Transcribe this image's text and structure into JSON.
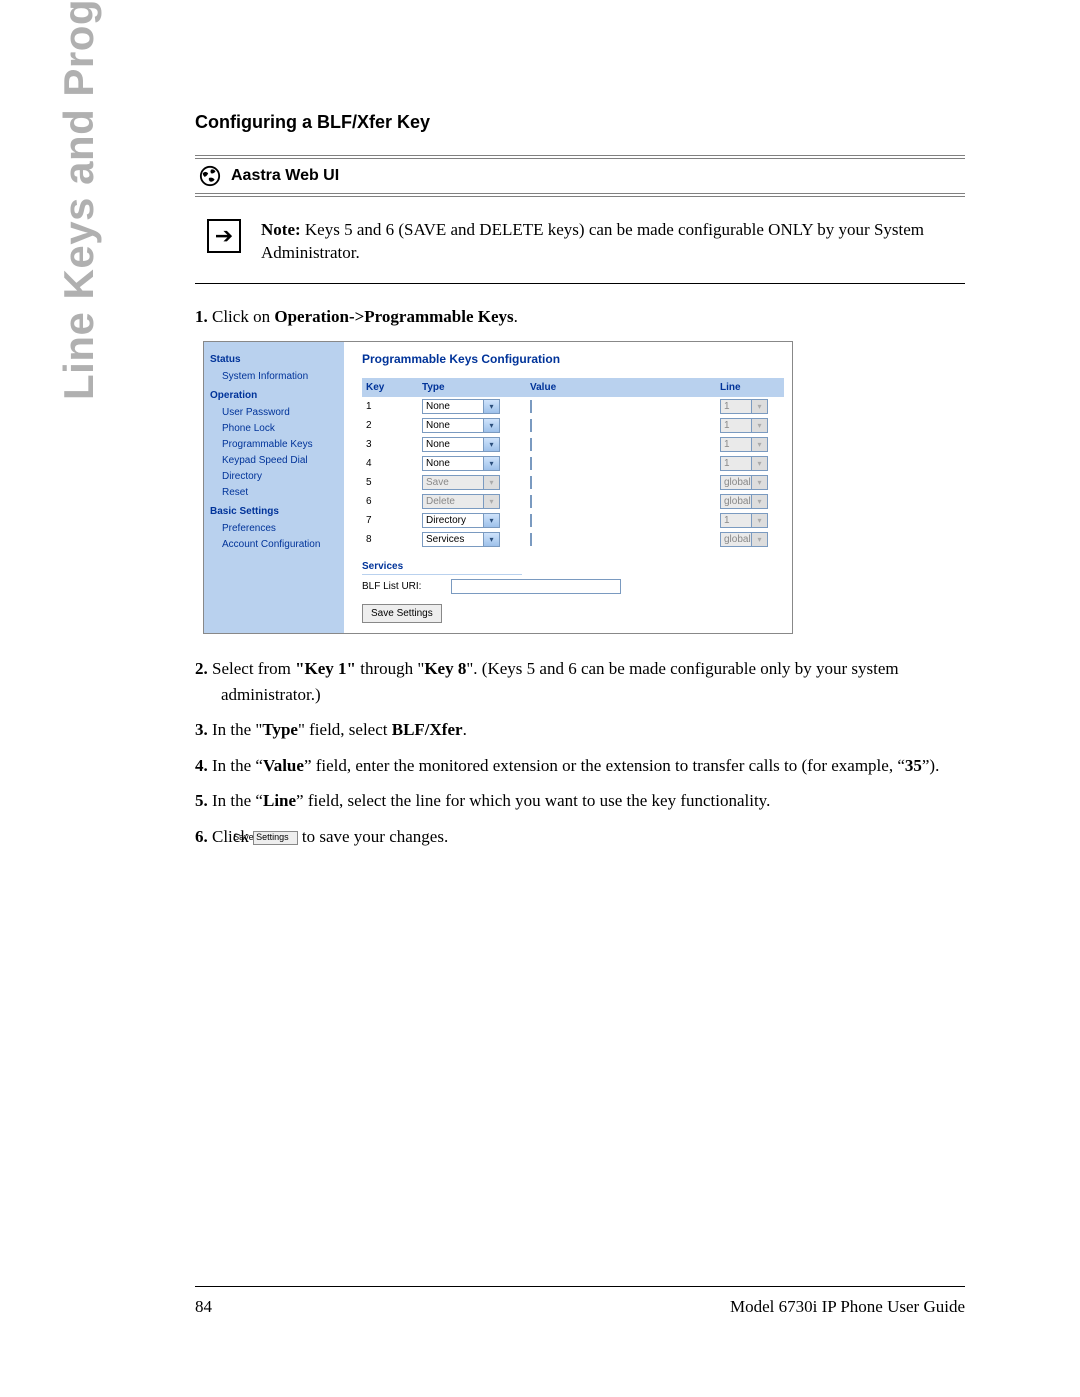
{
  "side_title": "Line Keys and Programmable Keys",
  "section_title": "Configuring a BLF/Xfer Key",
  "sub_header": "Aastra Web UI",
  "note": {
    "label": "Note:",
    "text": " Keys 5 and 6 (SAVE and DELETE keys) can be made configurable ONLY by your System Administrator."
  },
  "step1": {
    "num": "1.",
    "pre": "Click on ",
    "bold": "Operation->Programmable Keys",
    "post": "."
  },
  "screenshot": {
    "title": "Programmable Keys Configuration",
    "sidebar": {
      "h_status": "Status",
      "i_sysinfo": "System Information",
      "h_operation": "Operation",
      "i_userpw": "User Password",
      "i_phonelock": "Phone Lock",
      "i_progkeys": "Programmable Keys",
      "i_keypad": "Keypad Speed Dial",
      "i_directory": "Directory",
      "i_reset": "Reset",
      "h_basic": "Basic Settings",
      "i_pref": "Preferences",
      "i_acct": "Account Configuration"
    },
    "columns": {
      "key": "Key",
      "type": "Type",
      "value": "Value",
      "line": "Line"
    },
    "rows": [
      {
        "key": "1",
        "type": "None",
        "type_disabled": false,
        "line": "1",
        "line_disabled": true
      },
      {
        "key": "2",
        "type": "None",
        "type_disabled": false,
        "line": "1",
        "line_disabled": true
      },
      {
        "key": "3",
        "type": "None",
        "type_disabled": false,
        "line": "1",
        "line_disabled": true
      },
      {
        "key": "4",
        "type": "None",
        "type_disabled": false,
        "line": "1",
        "line_disabled": true
      },
      {
        "key": "5",
        "type": "Save",
        "type_disabled": true,
        "line": "global",
        "line_disabled": true
      },
      {
        "key": "6",
        "type": "Delete",
        "type_disabled": true,
        "line": "global",
        "line_disabled": true
      },
      {
        "key": "7",
        "type": "Directory",
        "type_disabled": false,
        "line": "1",
        "line_disabled": true
      },
      {
        "key": "8",
        "type": "Services",
        "type_disabled": false,
        "line": "global",
        "line_disabled": true
      }
    ],
    "services_header": "Services",
    "blf_label": "BLF List URI:",
    "save_settings": "Save Settings"
  },
  "step2": {
    "num": "2.",
    "t1": "Select from ",
    "b1": "\"Key 1\"",
    "t2": " through \"",
    "b2": "Key 8",
    "t3": "\". (Keys 5 and 6 can be made configurable only by your system administrator.)"
  },
  "step3": {
    "num": "3.",
    "t1": "In the \"",
    "b1": "Type",
    "t2": "\" field, select ",
    "b2": "BLF/Xfer",
    "t3": "."
  },
  "step4": {
    "num": "4.",
    "t1": "In the “",
    "b1": "Value",
    "t2": "” field, enter the monitored extension or the extension to transfer calls to (for example, “",
    "b2": "35",
    "t3": "”)."
  },
  "step5": {
    "num": "5.",
    "t1": "In the “",
    "b1": "Line",
    "t2": "” field, select the line for which you want to use the key functionality."
  },
  "step6": {
    "num": "6.",
    "t1": "Click ",
    "btn": "Save Settings",
    "t2": " to save your changes."
  },
  "footer": {
    "page": "84",
    "title": "Model 6730i IP Phone User Guide"
  },
  "colors": {
    "side_title": "#b0b0b0",
    "link_blue": "#003399",
    "panel_blue": "#b9d1ee"
  }
}
